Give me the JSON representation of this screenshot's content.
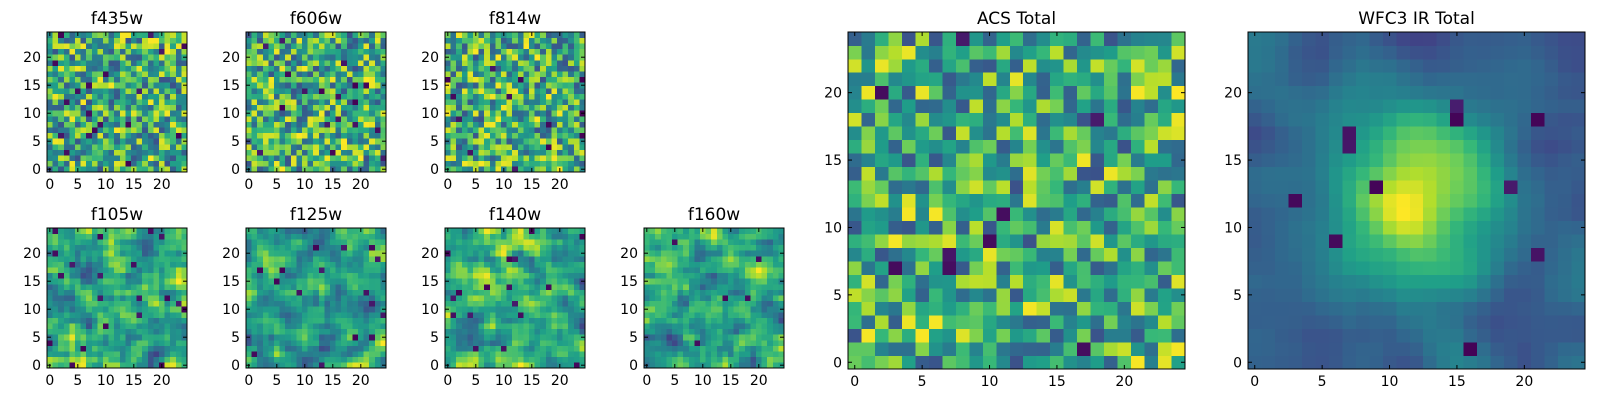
{
  "chart_data": [
    {
      "type": "heatmap",
      "title": "f435w",
      "colormap": "viridis",
      "grid_size": 25,
      "pattern": "noise",
      "seed": 11,
      "x_ticks": [
        0,
        5,
        10,
        15,
        20
      ],
      "y_ticks": [
        0,
        5,
        10,
        15,
        20
      ]
    },
    {
      "type": "heatmap",
      "title": "f606w",
      "colormap": "viridis",
      "grid_size": 25,
      "pattern": "noise",
      "seed": 23,
      "x_ticks": [
        0,
        5,
        10,
        15,
        20
      ],
      "y_ticks": [
        0,
        5,
        10,
        15,
        20
      ]
    },
    {
      "type": "heatmap",
      "title": "f814w",
      "colormap": "viridis",
      "grid_size": 25,
      "pattern": "noise",
      "seed": 37,
      "x_ticks": [
        0,
        5,
        10,
        15,
        20
      ],
      "y_ticks": [
        0,
        5,
        10,
        15,
        20
      ]
    },
    {
      "type": "heatmap",
      "title": "f105w",
      "colormap": "viridis",
      "grid_size": 25,
      "pattern": "smooth",
      "seed": 41,
      "x_ticks": [
        0,
        5,
        10,
        15,
        20
      ],
      "y_ticks": [
        0,
        5,
        10,
        15,
        20
      ]
    },
    {
      "type": "heatmap",
      "title": "f125w",
      "colormap": "viridis",
      "grid_size": 25,
      "pattern": "smooth",
      "seed": 53,
      "x_ticks": [
        0,
        5,
        10,
        15,
        20
      ],
      "y_ticks": [
        0,
        5,
        10,
        15,
        20
      ]
    },
    {
      "type": "heatmap",
      "title": "f140w",
      "colormap": "viridis",
      "grid_size": 25,
      "pattern": "smooth",
      "seed": 67,
      "x_ticks": [
        0,
        5,
        10,
        15,
        20
      ],
      "y_ticks": [
        0,
        5,
        10,
        15,
        20
      ]
    },
    {
      "type": "heatmap",
      "title": "f160w",
      "colormap": "viridis",
      "grid_size": 25,
      "pattern": "smooth",
      "seed": 79,
      "x_ticks": [
        0,
        5,
        10,
        15,
        20
      ],
      "y_ticks": [
        0,
        5,
        10,
        15,
        20
      ]
    },
    {
      "type": "heatmap",
      "title": "ACS Total",
      "colormap": "viridis",
      "grid_size": 25,
      "pattern": "noise",
      "seed": 97,
      "x_ticks": [
        0,
        5,
        10,
        15,
        20
      ],
      "y_ticks": [
        0,
        5,
        10,
        15,
        20
      ]
    },
    {
      "type": "heatmap",
      "title": "WFC3 IR Total",
      "colormap": "viridis",
      "grid_size": 25,
      "pattern": "source",
      "seed": 113,
      "source_center": [
        12,
        12
      ],
      "x_ticks": [
        0,
        5,
        10,
        15,
        20
      ],
      "y_ticks": [
        0,
        5,
        10,
        15,
        20
      ]
    }
  ]
}
